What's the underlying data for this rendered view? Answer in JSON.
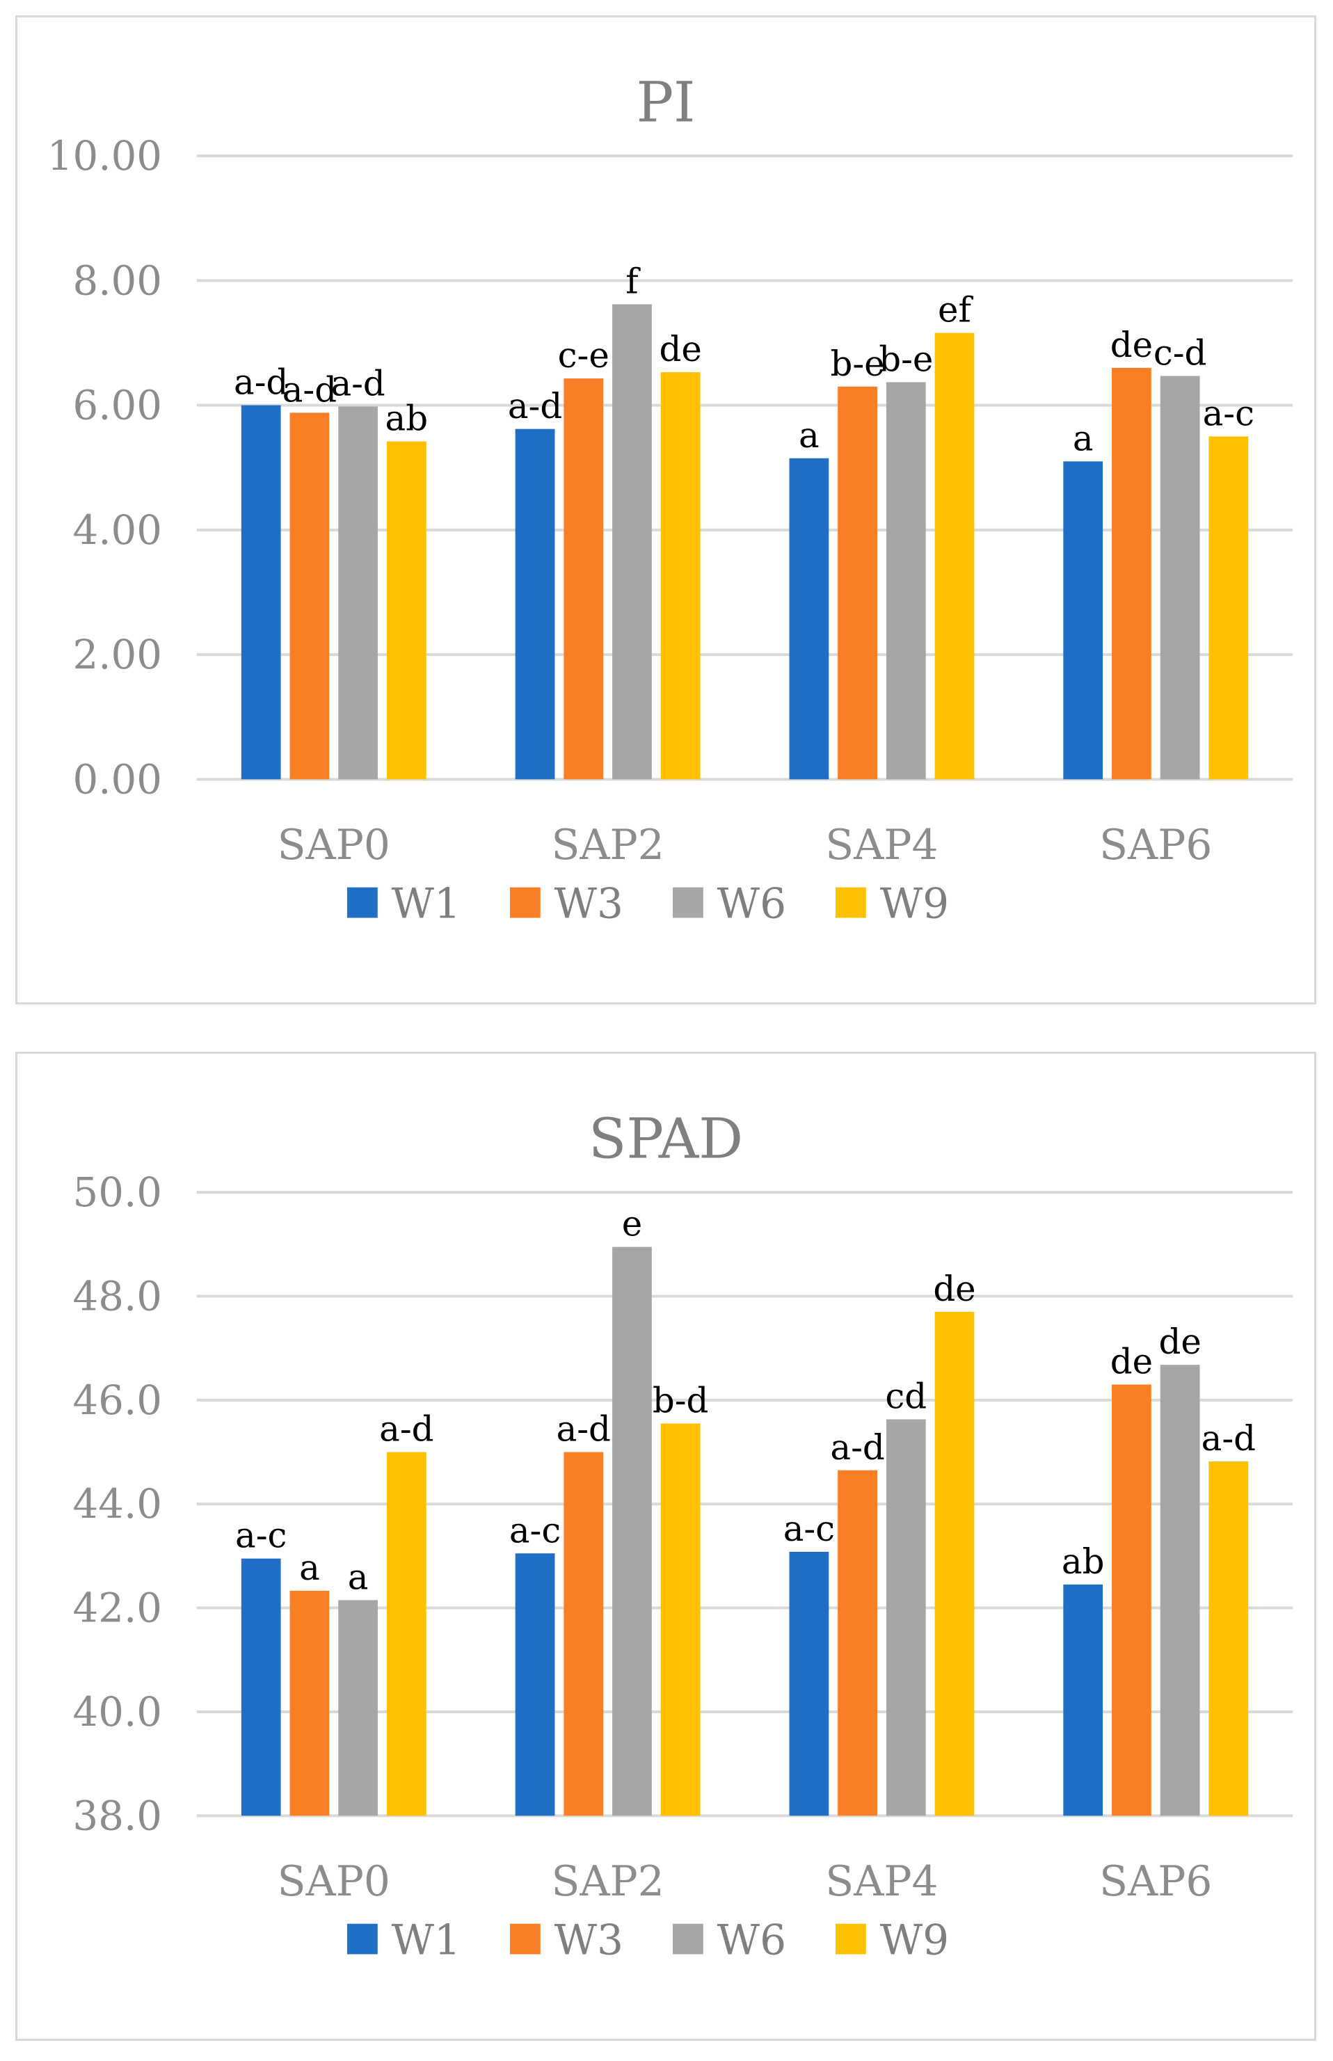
{
  "chart_data": [
    {
      "type": "bar",
      "title": "PI",
      "categories": [
        "SAP0",
        "SAP2",
        "SAP4",
        "SAP6"
      ],
      "yticks": [
        "0.00",
        "2.00",
        "4.00",
        "6.00",
        "8.00",
        "10.00"
      ],
      "ylim": [
        0,
        10
      ],
      "legend_position": "bottom",
      "series": [
        {
          "name": "W1",
          "color": "#1f6fc6",
          "values": [
            6.0,
            5.62,
            5.15,
            5.1
          ],
          "labels": [
            "a-d",
            "a-d",
            "a",
            "a"
          ]
        },
        {
          "name": "W3",
          "color": "#f97e26",
          "values": [
            5.88,
            6.43,
            6.3,
            6.6
          ],
          "labels": [
            "a-d",
            "c-e",
            "b-e",
            "de"
          ]
        },
        {
          "name": "W6",
          "color": "#a6a6a6",
          "values": [
            5.98,
            7.62,
            6.37,
            6.47
          ],
          "labels": [
            "a-d",
            "f",
            "b-e",
            "c-d"
          ]
        },
        {
          "name": "W9",
          "color": "#ffc000",
          "values": [
            5.42,
            6.53,
            7.16,
            5.5
          ],
          "labels": [
            "ab",
            "de",
            "ef",
            "a-c"
          ]
        }
      ]
    },
    {
      "type": "bar",
      "title": "SPAD",
      "categories": [
        "SAP0",
        "SAP2",
        "SAP4",
        "SAP6"
      ],
      "yticks": [
        "38.0",
        "40.0",
        "42.0",
        "44.0",
        "46.0",
        "48.0",
        "50.0"
      ],
      "ylim": [
        38,
        50
      ],
      "legend_position": "bottom",
      "series": [
        {
          "name": "W1",
          "color": "#1f6fc6",
          "values": [
            42.95,
            43.05,
            43.08,
            42.45
          ],
          "labels": [
            "a-c",
            "a-c",
            "a-c",
            "ab"
          ]
        },
        {
          "name": "W3",
          "color": "#f97e26",
          "values": [
            42.33,
            45.0,
            44.65,
            46.3
          ],
          "labels": [
            "a",
            "a-d",
            "a-d",
            "de"
          ]
        },
        {
          "name": "W6",
          "color": "#a6a6a6",
          "values": [
            42.15,
            48.95,
            45.63,
            46.68
          ],
          "labels": [
            "a",
            "e",
            "cd",
            "de"
          ]
        },
        {
          "name": "W9",
          "color": "#ffc000",
          "values": [
            45.0,
            45.55,
            47.7,
            44.82
          ],
          "labels": [
            "a-d",
            "b-d",
            "de",
            "a-d"
          ]
        }
      ]
    }
  ]
}
